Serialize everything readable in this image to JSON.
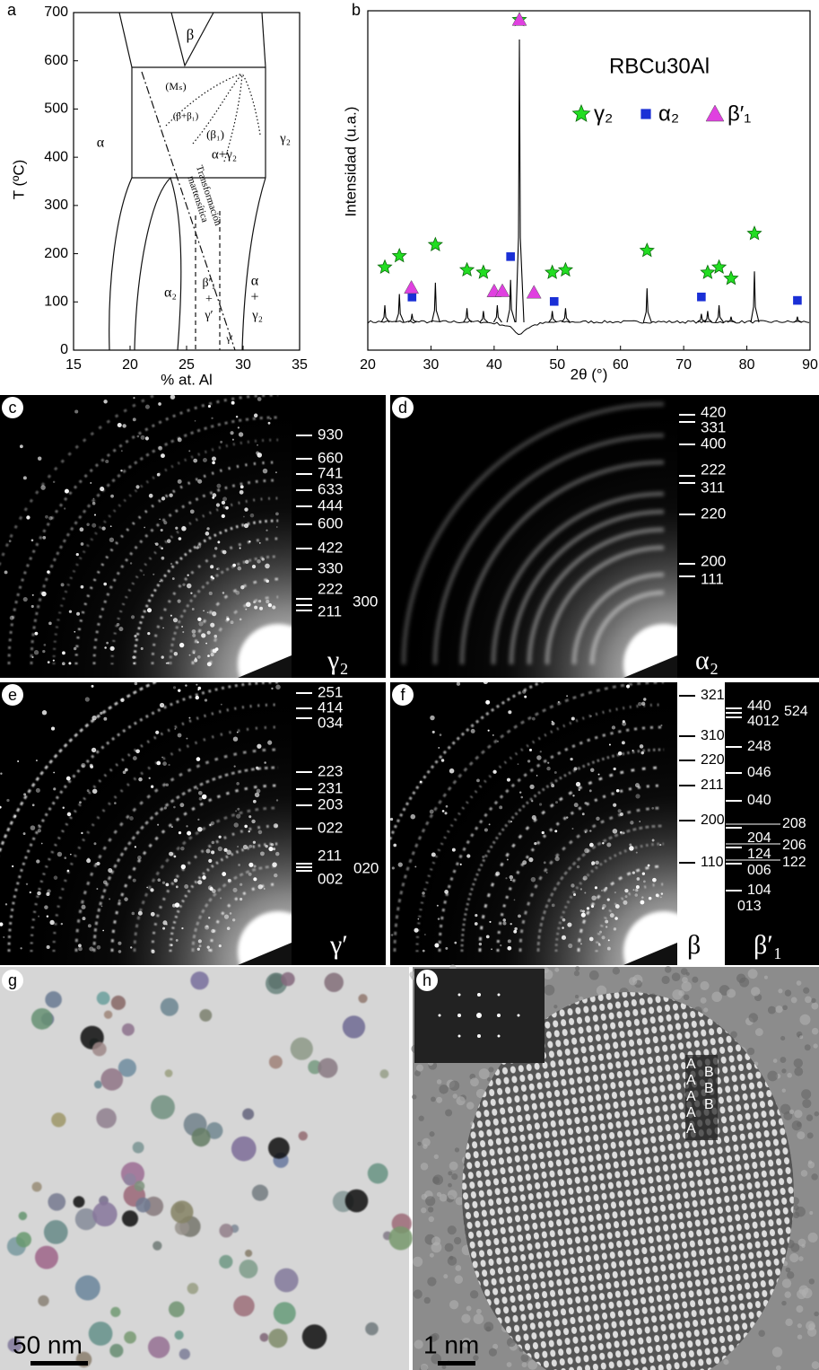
{
  "a": {
    "label": "a",
    "xlim": [
      15,
      35
    ],
    "xticks": [
      15,
      20,
      25,
      30,
      35
    ],
    "ylim": [
      0,
      700
    ],
    "yticks": [
      0,
      100,
      200,
      300,
      400,
      500,
      600,
      700
    ],
    "xlabel": "% at. Al",
    "ylabel": "T (ºC)",
    "regions": [
      "β",
      "(Mₛ)",
      "(β+β₁)",
      "(β₁)",
      "α+γ₂",
      "γ₂",
      "α",
      "Transformación",
      "martensítica",
      "α₂",
      "β′₁",
      "+",
      "γ′",
      "α",
      "+",
      "γ₂",
      "γ′"
    ]
  },
  "b": {
    "label": "b",
    "title": "RBCu30Al",
    "ylabel": "Intensidad (u.a.)",
    "xlabel": "2θ (°)",
    "xlim": [
      20,
      90
    ],
    "xticks": [
      20,
      30,
      40,
      50,
      60,
      70,
      80,
      90
    ],
    "peaks": {
      "x": [
        22.7,
        25,
        27,
        30.7,
        35.7,
        38.3,
        40.5,
        42.6,
        44,
        49.2,
        51.3,
        64.2,
        72.8,
        73.8,
        75.6,
        77.5,
        81.2,
        88
      ],
      "intensity": [
        6,
        10,
        3,
        14,
        5,
        4,
        6,
        15,
        100,
        4,
        5,
        12,
        3,
        4,
        6,
        2,
        18,
        2
      ]
    },
    "markers": [
      {
        "name": "γ₂",
        "color": "#22dd22",
        "shape": "star",
        "x": [
          22.7,
          25,
          30.7,
          35.7,
          38.3,
          44,
          49.2,
          51.3,
          64.2,
          73.8,
          75.6,
          77.5,
          81.2
        ]
      },
      {
        "name": "α₂",
        "color": "#1a2fd6",
        "shape": "square",
        "x": [
          27,
          42.6,
          49.5,
          72.8,
          88
        ]
      },
      {
        "name": "β′₁",
        "color": "#e040e0",
        "shape": "triangle",
        "x": [
          26.9,
          40,
          41.3,
          44,
          46.3
        ]
      }
    ]
  },
  "c": {
    "label": "c",
    "phase": "γ₂",
    "indices": [
      "930",
      "660",
      "741",
      "633",
      "444",
      "600",
      "422",
      "330",
      "222",
      "211",
      "300"
    ]
  },
  "d": {
    "label": "d",
    "phase": "α₂",
    "indices": [
      "420",
      "331",
      "400",
      "222",
      "311",
      "220",
      "200",
      "111"
    ]
  },
  "e": {
    "label": "e",
    "phase": "γ′",
    "indices": [
      "251",
      "414",
      "034",
      "223",
      "231",
      "203",
      "022",
      "211",
      "002",
      "020"
    ]
  },
  "f": {
    "label": "f",
    "phase_beta": "β",
    "indices_beta": [
      "321",
      "310",
      "220",
      "211",
      "200",
      "110"
    ],
    "phase": "β′₁",
    "indices": [
      "440",
      "4012",
      "524",
      "248",
      "046",
      "040",
      "208",
      "204",
      "206",
      "124",
      "122",
      "006",
      "104",
      "013"
    ]
  },
  "g": {
    "label": "g",
    "scale": "50 nm"
  },
  "h": {
    "label": "h",
    "scale": "1 nm",
    "stacking_a": [
      "A",
      "A",
      "A",
      "A",
      "A"
    ],
    "stacking_b": [
      "B",
      "B",
      "B"
    ]
  }
}
